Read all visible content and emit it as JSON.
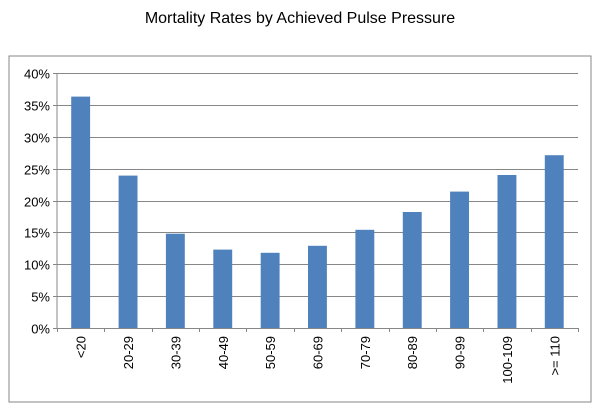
{
  "chart_data": {
    "type": "bar",
    "title": "Mortality Rates by Achieved Pulse Pressure",
    "xlabel": "",
    "ylabel": "",
    "categories": [
      "<20",
      "20-29",
      "30-39",
      "40-49",
      "50-59",
      "60-69",
      "70-79",
      "80-89",
      "90-99",
      "100-109",
      ">= 110"
    ],
    "values": [
      36.3,
      23.9,
      14.8,
      12.3,
      11.8,
      12.9,
      15.4,
      18.2,
      21.4,
      24.0,
      27.1
    ],
    "ylim": [
      0,
      40
    ],
    "yticks": [
      {
        "value": 0,
        "label": "0%"
      },
      {
        "value": 5,
        "label": "5%"
      },
      {
        "value": 10,
        "label": "10%"
      },
      {
        "value": 15,
        "label": "15%"
      },
      {
        "value": 20,
        "label": "20%"
      },
      {
        "value": 25,
        "label": "25%"
      },
      {
        "value": 30,
        "label": "30%"
      },
      {
        "value": 35,
        "label": "35%"
      },
      {
        "value": 40,
        "label": "40%"
      }
    ],
    "grid": true,
    "legend": "none",
    "bar_color": "#4F81BD",
    "grid_color": "#878787",
    "frame_color": "#878787"
  }
}
